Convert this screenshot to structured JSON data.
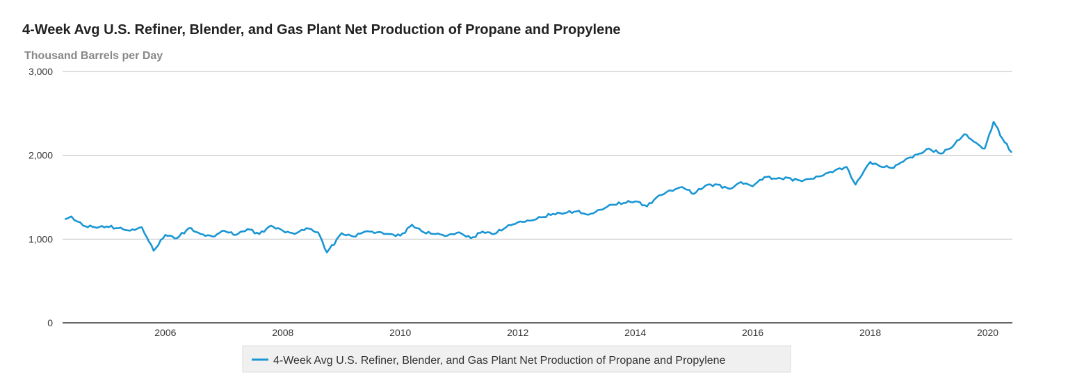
{
  "chart_data": {
    "type": "line",
    "title": "4-Week Avg U.S. Refiner, Blender, and Gas Plant Net Production of Propane and Propylene",
    "ylabel": "Thousand Barrels per Day",
    "xlabel": "",
    "ylim": [
      0,
      3000
    ],
    "xlim": [
      2004.25,
      2020.42
    ],
    "yticks": [
      0,
      1000,
      2000,
      3000
    ],
    "ytick_labels": [
      "0",
      "1,000",
      "2,000",
      "3,000"
    ],
    "xticks": [
      2006,
      2008,
      2010,
      2012,
      2014,
      2016,
      2018,
      2020
    ],
    "xtick_labels": [
      "2006",
      "2008",
      "2010",
      "2012",
      "2014",
      "2016",
      "2018",
      "2020"
    ],
    "grid": true,
    "legend_position": "bottom-center",
    "series": [
      {
        "name": "4-Week Avg U.S. Refiner, Blender, and Gas Plant Net Production of Propane and Propylene",
        "color": "#1a96d4",
        "x": [
          2004.3,
          2004.4,
          2004.5,
          2004.6,
          2004.8,
          2005.0,
          2005.2,
          2005.4,
          2005.6,
          2005.8,
          2006.0,
          2006.2,
          2006.4,
          2006.6,
          2006.8,
          2007.0,
          2007.2,
          2007.4,
          2007.6,
          2007.8,
          2008.0,
          2008.2,
          2008.4,
          2008.6,
          2008.75,
          2009.0,
          2009.2,
          2009.4,
          2009.6,
          2009.8,
          2010.0,
          2010.2,
          2010.4,
          2010.6,
          2010.8,
          2011.0,
          2011.2,
          2011.4,
          2011.6,
          2011.8,
          2012.0,
          2012.2,
          2012.4,
          2012.6,
          2012.8,
          2013.0,
          2013.2,
          2013.4,
          2013.6,
          2013.8,
          2014.0,
          2014.2,
          2014.4,
          2014.6,
          2014.8,
          2015.0,
          2015.2,
          2015.4,
          2015.6,
          2015.8,
          2016.0,
          2016.2,
          2016.4,
          2016.6,
          2016.8,
          2017.0,
          2017.2,
          2017.4,
          2017.6,
          2017.75,
          2017.9,
          2018.0,
          2018.2,
          2018.4,
          2018.6,
          2018.8,
          2019.0,
          2019.2,
          2019.4,
          2019.6,
          2019.8,
          2019.95,
          2020.1,
          2020.25,
          2020.4
        ],
        "values": [
          1240,
          1270,
          1210,
          1160,
          1140,
          1150,
          1130,
          1100,
          1140,
          860,
          1050,
          1010,
          1130,
          1060,
          1030,
          1100,
          1050,
          1120,
          1060,
          1160,
          1100,
          1060,
          1130,
          1080,
          840,
          1070,
          1030,
          1090,
          1080,
          1060,
          1040,
          1170,
          1080,
          1060,
          1040,
          1080,
          1010,
          1090,
          1060,
          1140,
          1200,
          1220,
          1260,
          1300,
          1310,
          1330,
          1290,
          1350,
          1410,
          1430,
          1450,
          1390,
          1520,
          1580,
          1620,
          1540,
          1640,
          1650,
          1600,
          1680,
          1630,
          1740,
          1720,
          1730,
          1700,
          1720,
          1760,
          1820,
          1860,
          1650,
          1820,
          1920,
          1860,
          1850,
          1950,
          2010,
          2080,
          2020,
          2100,
          2250,
          2150,
          2080,
          2400,
          2200,
          2040
        ]
      }
    ]
  }
}
